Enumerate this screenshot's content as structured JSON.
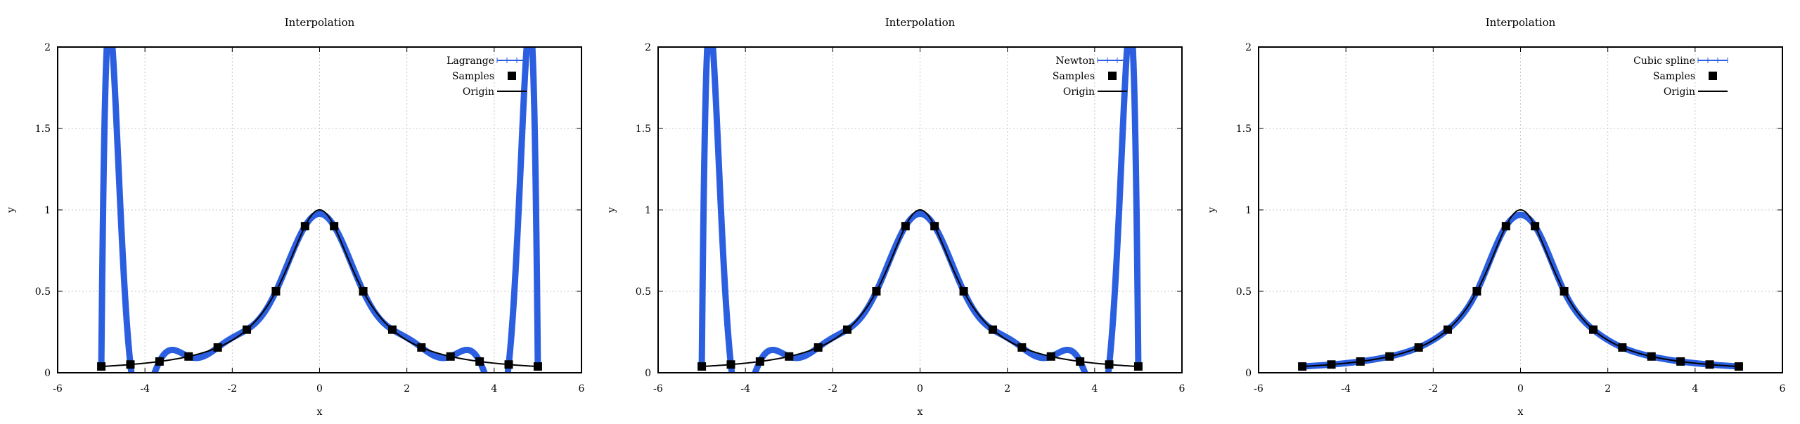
{
  "colors": {
    "interp": "#2b5fe0",
    "origin": "#000000",
    "samples": "#000000",
    "grid": "#c8c8c8"
  },
  "chart_data": [
    {
      "type": "line",
      "title": "Interpolation",
      "xlabel": "x",
      "ylabel": "y",
      "xlim": [
        -6,
        6
      ],
      "ylim": [
        0,
        2
      ],
      "xticks": [
        "-6",
        "-4",
        "-2",
        "0",
        "2",
        "4",
        "6"
      ],
      "yticks": [
        "0",
        "0.5",
        "1",
        "1.5",
        "2"
      ],
      "grid": true,
      "legend_position": "top-right",
      "series": [
        {
          "name": "Lagrange",
          "method": "polynomial"
        },
        {
          "name": "Samples",
          "marker": "square"
        },
        {
          "name": "Origin",
          "function": "1/(1+x^2)"
        }
      ],
      "samples_x": [
        -5,
        -4.333,
        -3.667,
        -3,
        -2.333,
        -1.667,
        -1,
        -0.333,
        0.333,
        1,
        1.667,
        2.333,
        3,
        3.667,
        4.333,
        5
      ]
    },
    {
      "type": "line",
      "title": "Interpolation",
      "xlabel": "x",
      "ylabel": "y",
      "xlim": [
        -6,
        6
      ],
      "ylim": [
        0,
        2
      ],
      "xticks": [
        "-6",
        "-4",
        "-2",
        "0",
        "2",
        "4",
        "6"
      ],
      "yticks": [
        "0",
        "0.5",
        "1",
        "1.5",
        "2"
      ],
      "grid": true,
      "legend_position": "top-right",
      "series": [
        {
          "name": "Newton",
          "method": "polynomial"
        },
        {
          "name": "Samples",
          "marker": "square"
        },
        {
          "name": "Origin",
          "function": "1/(1+x^2)"
        }
      ],
      "samples_x": [
        -5,
        -4.333,
        -3.667,
        -3,
        -2.333,
        -1.667,
        -1,
        -0.333,
        0.333,
        1,
        1.667,
        2.333,
        3,
        3.667,
        4.333,
        5
      ]
    },
    {
      "type": "line",
      "title": "Interpolation",
      "xlabel": "x",
      "ylabel": "y",
      "xlim": [
        -6,
        6
      ],
      "ylim": [
        0,
        2
      ],
      "xticks": [
        "-6",
        "-4",
        "-2",
        "0",
        "2",
        "4",
        "6"
      ],
      "yticks": [
        "0",
        "0.5",
        "1",
        "1.5",
        "2"
      ],
      "grid": true,
      "legend_position": "top-right",
      "series": [
        {
          "name": "Cubic spline",
          "method": "spline"
        },
        {
          "name": "Samples",
          "marker": "square"
        },
        {
          "name": "Origin",
          "function": "1/(1+x^2)"
        }
      ],
      "samples_x": [
        -5,
        -4.333,
        -3.667,
        -3,
        -2.333,
        -1.667,
        -1,
        -0.333,
        0.333,
        1,
        1.667,
        2.333,
        3,
        3.667,
        4.333,
        5
      ]
    }
  ]
}
